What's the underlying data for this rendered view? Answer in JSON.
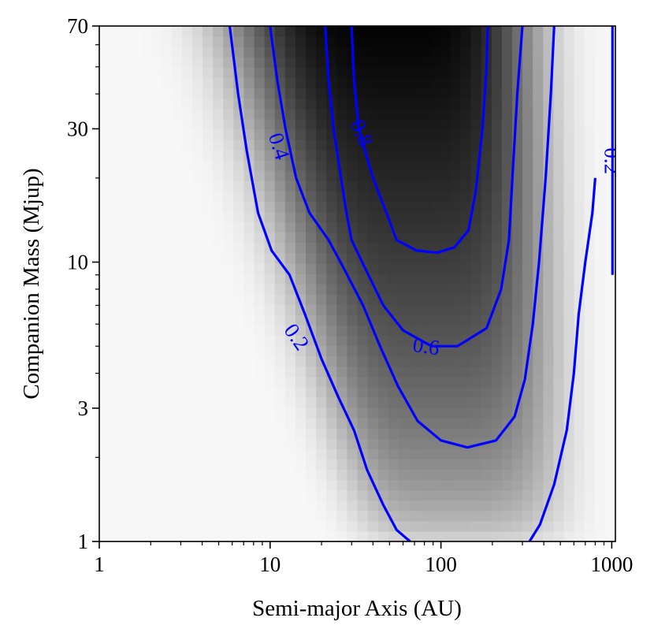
{
  "chart_data": {
    "type": "heatmap",
    "title": "",
    "xlabel": "Semi-major Axis (AU)",
    "ylabel": "Companion Mass (Mjup)",
    "xscale": "log",
    "yscale": "log",
    "xlim": [
      1,
      1050
    ],
    "ylim": [
      1,
      70
    ],
    "xticks": [
      {
        "value": 1,
        "label": "1"
      },
      {
        "value": 10,
        "label": "10"
      },
      {
        "value": 100,
        "label": "100"
      },
      {
        "value": 1000,
        "label": "1000"
      }
    ],
    "yticks": [
      {
        "value": 1,
        "label": "1"
      },
      {
        "value": 3,
        "label": "3"
      },
      {
        "value": 10,
        "label": "10"
      },
      {
        "value": 30,
        "label": "30"
      },
      {
        "value": 70,
        "label": "70"
      }
    ],
    "colormap": "Greys",
    "contour_color": "#0000ff",
    "contours": [
      {
        "level": 0.2,
        "label": "0.2",
        "points": [
          [
            5.8,
            70
          ],
          [
            6.5,
            40
          ],
          [
            7.3,
            25
          ],
          [
            8.5,
            15
          ],
          [
            10.2,
            11
          ],
          [
            13,
            9
          ],
          [
            16,
            6.5
          ],
          [
            20,
            4.5
          ],
          [
            25,
            3.3
          ],
          [
            31,
            2.5
          ],
          [
            37,
            1.8
          ],
          [
            46,
            1.35
          ],
          [
            55,
            1.1
          ],
          [
            66,
            1.0
          ]
        ]
      },
      {
        "level": 0.4,
        "label": "0.4",
        "points": [
          [
            10,
            70
          ],
          [
            11,
            45
          ],
          [
            12.3,
            30
          ],
          [
            14.2,
            20
          ],
          [
            17,
            15
          ],
          [
            22,
            12
          ],
          [
            27,
            9.5
          ],
          [
            35,
            7
          ],
          [
            44,
            5
          ],
          [
            56,
            3.6
          ],
          [
            73,
            2.7
          ],
          [
            100,
            2.3
          ],
          [
            143,
            2.17
          ],
          [
            210,
            2.3
          ],
          [
            270,
            2.8
          ],
          [
            310,
            3.8
          ],
          [
            345,
            6
          ],
          [
            375,
            10
          ],
          [
            410,
            20
          ],
          [
            440,
            40
          ],
          [
            460,
            70
          ]
        ]
      },
      {
        "level": 0.6,
        "label": "0.6",
        "points": [
          [
            21,
            70
          ],
          [
            22,
            45
          ],
          [
            23.5,
            30
          ],
          [
            26,
            20
          ],
          [
            28,
            15
          ],
          [
            30,
            12
          ],
          [
            36,
            9.5
          ],
          [
            46,
            7
          ],
          [
            60,
            5.7
          ],
          [
            88,
            5
          ],
          [
            125,
            5
          ],
          [
            185,
            5.8
          ],
          [
            225,
            8
          ],
          [
            250,
            12
          ],
          [
            262,
            20
          ],
          [
            280,
            40
          ],
          [
            300,
            70
          ]
        ]
      },
      {
        "level": 0.8,
        "label": "0.8",
        "points": [
          [
            30,
            70
          ],
          [
            31,
            45
          ],
          [
            33,
            30
          ],
          [
            40,
            20
          ],
          [
            48,
            15
          ],
          [
            55,
            12
          ],
          [
            72,
            11
          ],
          [
            95,
            10.8
          ],
          [
            120,
            11.3
          ],
          [
            145,
            13
          ],
          [
            160,
            18
          ],
          [
            175,
            30
          ],
          [
            185,
            50
          ],
          [
            188,
            70
          ]
        ]
      },
      {
        "level": 0.2,
        "label": "0.2",
        "points": [
          [
            330,
            1.0
          ],
          [
            380,
            1.15
          ],
          [
            460,
            1.6
          ],
          [
            545,
            2.5
          ],
          [
            600,
            4
          ],
          [
            640,
            6.5
          ],
          [
            700,
            10
          ],
          [
            770,
            15
          ],
          [
            800,
            20
          ]
        ]
      },
      {
        "level": 0.2,
        "label": "",
        "points": [
          [
            1010,
            70
          ],
          [
            1010,
            15
          ],
          [
            1010,
            9
          ]
        ]
      }
    ],
    "contour_labels": [
      {
        "text": "0.2",
        "x": 14.3,
        "y": 5.4,
        "angle": 55
      },
      {
        "text": "0.4",
        "x": 11.3,
        "y": 26,
        "angle": 72
      },
      {
        "text": "0.6",
        "x": 82,
        "y": 5.0,
        "angle": 8
      },
      {
        "text": "0.8",
        "x": 34.5,
        "y": 29,
        "angle": 67
      },
      {
        "text": "0.2",
        "x": 1000,
        "y": 23,
        "angle": 90
      }
    ]
  }
}
